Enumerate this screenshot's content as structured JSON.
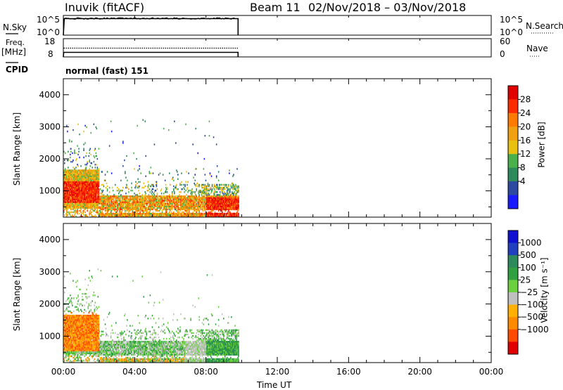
{
  "header": {
    "station": "Inuvik (fitACF)",
    "beam": "Beam 11",
    "date_range": "02/Nov/2018 – 03/Nov/2018"
  },
  "labels": {
    "nsky": "N.Sky",
    "freq": "Freq.",
    "freq_unit": "[MHz]",
    "cpid": "CPID",
    "nsearch": "N.Search",
    "nave": "Nave",
    "program": "normal (fast) 151"
  },
  "colors": {
    "power_scale": [
      "#1a1aff",
      "#2b4aa0",
      "#2e8a5a",
      "#4bb04b",
      "#e8c010",
      "#f0a010",
      "#ff7a00",
      "#ff2a00",
      "#e00000"
    ],
    "velocity_scale": [
      "#e00000",
      "#ff4a00",
      "#ff8a00",
      "#ffb000",
      "#c0c0c0",
      "#6ad040",
      "#30a040",
      "#2e8a5a",
      "#2040c0",
      "#1010d0"
    ]
  },
  "chart_data": [
    {
      "type": "line",
      "panel": "noise",
      "left_ticks": [
        "10^5",
        "10^0"
      ],
      "right_ticks": [
        "10^5",
        "10^0"
      ],
      "series": [
        {
          "name": "N.Sky",
          "x": [
            0,
            0.05,
            9.8,
            9.8
          ],
          "y": [
            0,
            4.2,
            4.2,
            0
          ]
        },
        {
          "name": "N.Search",
          "x": [
            0,
            0.05,
            9.8,
            9.8
          ],
          "y": [
            0,
            4.2,
            4.2,
            0
          ]
        }
      ]
    },
    {
      "type": "line",
      "panel": "frequency",
      "left_ticks": [
        "18",
        "8"
      ],
      "right_ticks": [
        "60",
        "0"
      ],
      "series": [
        {
          "name": "Freq.",
          "x": [
            0,
            9.8
          ],
          "y": [
            10.5,
            10.5
          ]
        },
        {
          "name": "Nave",
          "x": [
            0,
            9.8
          ],
          "y": [
            15,
            15
          ]
        }
      ]
    },
    {
      "type": "heatmap",
      "panel": "power",
      "ylabel": "Slant Range [km]",
      "colorbar_label": "Power [dB]",
      "colorbar_ticks": [
        "28",
        "24",
        "20",
        "16",
        "12",
        "8",
        "4"
      ],
      "y_ticks": [
        "4000",
        "3000",
        "2000",
        "1000"
      ],
      "xlim": [
        0,
        24
      ],
      "ylim": [
        180,
        4500
      ],
      "data_extent_hours": [
        0,
        9.8
      ]
    },
    {
      "type": "heatmap",
      "panel": "velocity",
      "ylabel": "Slant Range [km]",
      "colorbar_label": "Velocity [m s⁻¹]",
      "colorbar_ticks": [
        "1000",
        "500",
        "100",
        "25",
        "−25",
        "−100",
        "−500",
        "−1000"
      ],
      "y_ticks": [
        "4000",
        "3000",
        "2000",
        "1000"
      ],
      "xlim": [
        0,
        24
      ],
      "ylim": [
        180,
        4500
      ],
      "data_extent_hours": [
        0,
        9.8
      ]
    },
    {
      "type": "line",
      "panel": "time-axis",
      "xlabel": "Time UT",
      "x_ticks": [
        "00:00",
        "04:00",
        "08:00",
        "12:00",
        "16:00",
        "20:00",
        "00:00"
      ]
    }
  ]
}
